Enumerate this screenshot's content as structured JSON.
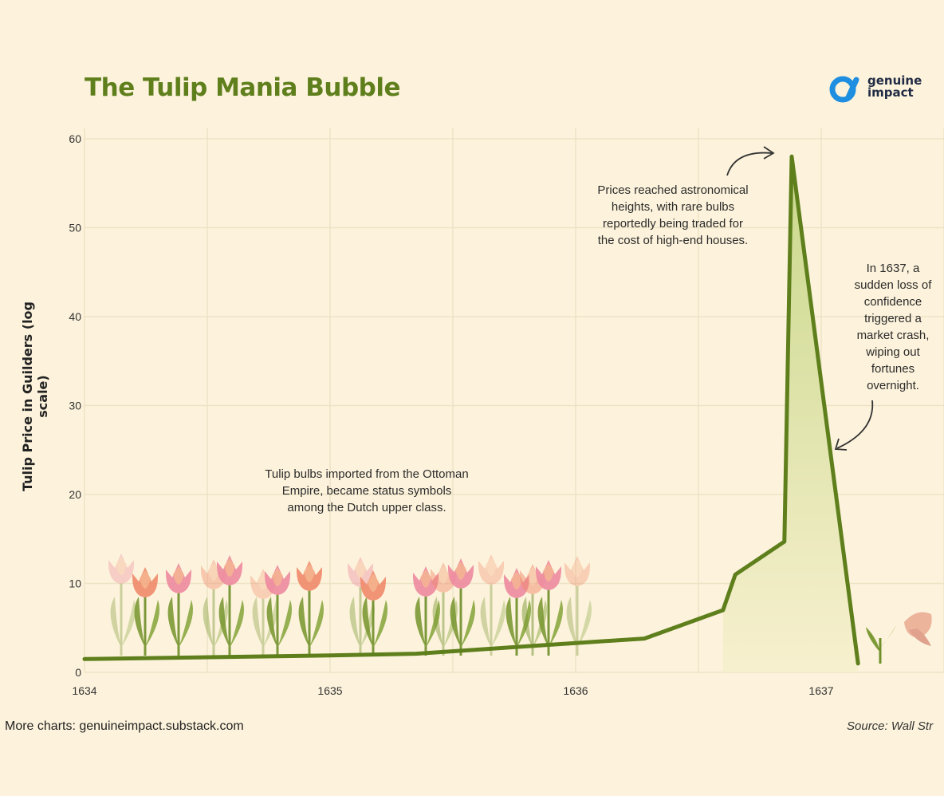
{
  "header": {
    "title": "The Tulip Mania Bubble",
    "brand_line1": "genuine",
    "brand_line2": "impact"
  },
  "footer": {
    "more_charts": "More charts: genuineimpact.substack.com",
    "source": "Source: Wall Str"
  },
  "annotations": {
    "ottoman": "Tulip bulbs imported from the Ottoman\nEmpire, became status symbols\namong the Dutch upper class.",
    "peak": "Prices reached astronomical\nheights, with rare bulbs\nreportedly being traded for\nthe cost of high-end houses.",
    "crash": "In 1637, a\nsudden loss of\nconfidence\ntriggered a\nmarket crash,\nwiping out\nfortunes\novernight."
  },
  "colors": {
    "line": "#5e7f1c",
    "fill_top": "#c9d88a",
    "fill_bottom": "#f7f0cf",
    "grid": "#ece3c6",
    "accent_blue": "#1e8fe0"
  },
  "chart_data": {
    "type": "area",
    "title": "The Tulip Mania Bubble",
    "xlabel": "",
    "ylabel": "Tulip Price in Guilders (log scale)",
    "xlim": [
      1634,
      1637.5
    ],
    "ylim": [
      0,
      60
    ],
    "x_ticks": [
      1634,
      1635,
      1636,
      1637
    ],
    "x_tick_labels": [
      "1634",
      "1635",
      "1636",
      "1637"
    ],
    "y_ticks": [
      0,
      10,
      20,
      30,
      40,
      50,
      60
    ],
    "y_tick_labels": [
      "0",
      "10",
      "20",
      "30",
      "40",
      "50",
      "60"
    ],
    "grid": true,
    "series": [
      {
        "name": "Tulip price",
        "x": [
          1634.0,
          1635.0,
          1635.35,
          1636.0,
          1636.28,
          1636.6,
          1636.65,
          1636.85,
          1636.88,
          1637.15
        ],
        "y": [
          1.5,
          1.9,
          2.1,
          3.3,
          3.8,
          7.0,
          11.0,
          14.7,
          58.0,
          1.0
        ]
      }
    ]
  }
}
